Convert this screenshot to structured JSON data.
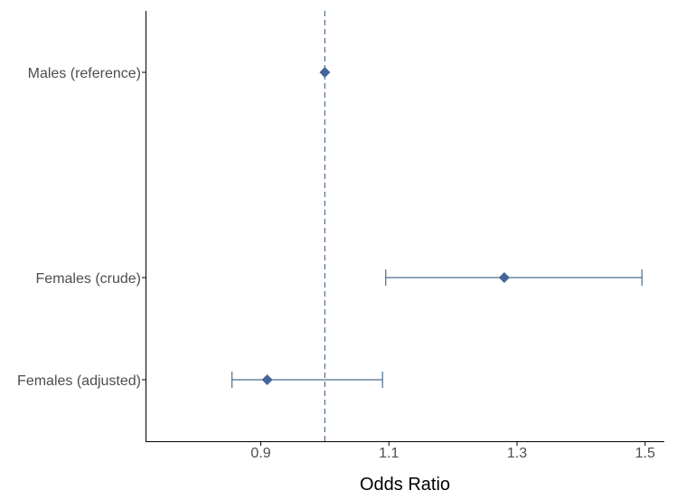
{
  "chart_data": {
    "type": "scatter",
    "subtype": "forest-plot",
    "title": "",
    "xlabel": "Odds Ratio",
    "ylabel": "",
    "xlim": [
      0.72,
      1.53
    ],
    "x_ticks": [
      0.9,
      1.1,
      1.3,
      1.5
    ],
    "x_tick_labels": [
      "0.9",
      "1.1",
      "1.3",
      "1.5"
    ],
    "reference_line": 1.0,
    "grid": false,
    "legend": "none",
    "colors": {
      "point": "#44659a",
      "ci": "#4a6d8c",
      "reference_line": "#4d6f8f"
    },
    "categories": [
      "Males (reference)",
      "Females (crude)",
      "Females (adjusted)"
    ],
    "points": [
      {
        "label": "Males (reference)",
        "estimate": 1.0,
        "ci_low": null,
        "ci_high": null,
        "slot": 1
      },
      {
        "label": "Females (crude)",
        "estimate": 1.28,
        "ci_low": 1.095,
        "ci_high": 1.495,
        "slot": 3
      },
      {
        "label": "Females (adjusted)",
        "estimate": 0.91,
        "ci_low": 0.855,
        "ci_high": 1.09,
        "slot": 4
      }
    ]
  }
}
